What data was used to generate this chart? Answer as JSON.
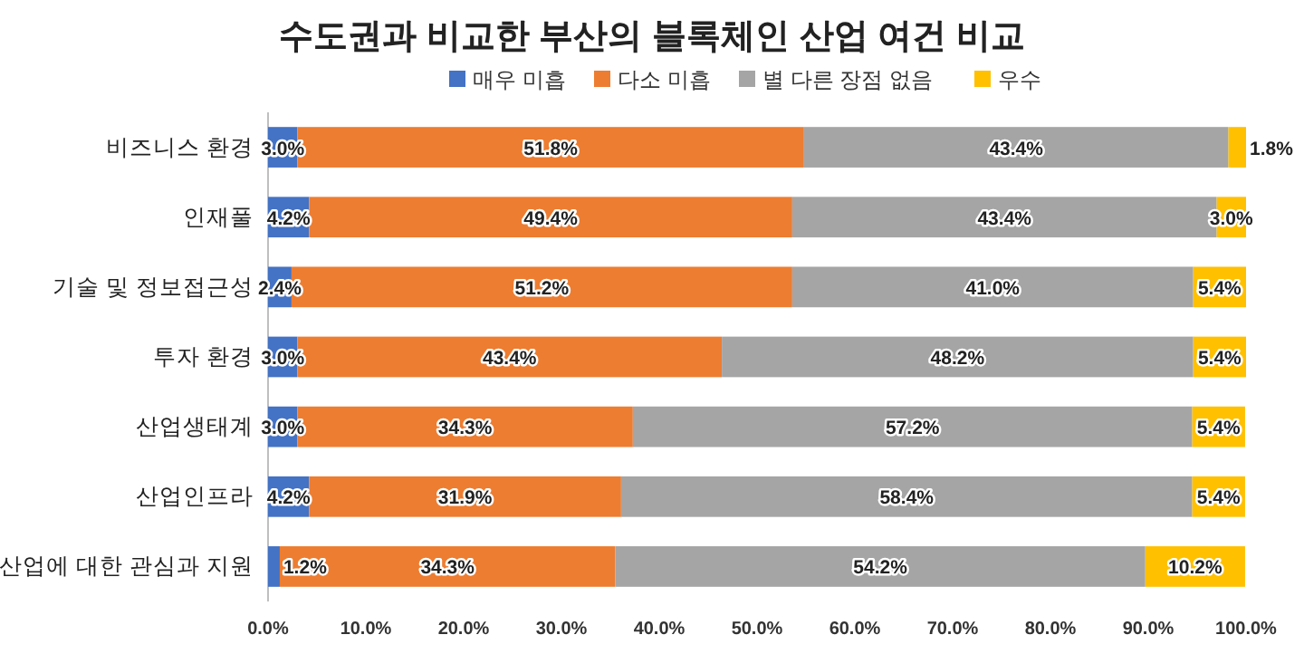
{
  "chart_data": {
    "type": "bar",
    "orientation": "horizontal",
    "stacked": true,
    "title": "수도권과 비교한 부산의 블록체인 산업 여건 비교",
    "categories": [
      "비즈니스 환경",
      "인재풀",
      "기술 및 정보접근성",
      "투자 환경",
      "산업생태계",
      "산업인프라",
      "산업에 대한 관심과 지원"
    ],
    "series": [
      {
        "name": "매우 미흡",
        "color": "#4472c4",
        "values": [
          3.0,
          4.2,
          2.4,
          3.0,
          3.0,
          4.2,
          1.2
        ],
        "value_labels": [
          "3.0%",
          "4.2%",
          "2.4%",
          "3.0%",
          "3.0%",
          "4.2%",
          "1.2%"
        ]
      },
      {
        "name": "다소 미흡",
        "color": "#ed7d31",
        "values": [
          51.8,
          49.4,
          51.2,
          43.4,
          34.3,
          31.9,
          34.3
        ],
        "value_labels": [
          "51.8%",
          "49.4%",
          "51.2%",
          "43.4%",
          "34.3%",
          "31.9%",
          "34.3%"
        ]
      },
      {
        "name": "별 다른 장점 없음",
        "color": "#a5a5a5",
        "values": [
          43.4,
          43.4,
          41.0,
          48.2,
          57.2,
          58.4,
          54.2
        ],
        "value_labels": [
          "43.4%",
          "43.4%",
          "41.0%",
          "48.2%",
          "57.2%",
          "58.4%",
          "54.2%"
        ]
      },
      {
        "name": "우수",
        "color": "#ffc000",
        "values": [
          1.8,
          3.0,
          5.4,
          5.4,
          5.4,
          5.4,
          10.2
        ],
        "value_labels": [
          "1.8%",
          "3.0%",
          "5.4%",
          "5.4%",
          "5.4%",
          "5.4%",
          "10.2%"
        ]
      }
    ],
    "xlim": [
      0,
      100
    ],
    "xticks": [
      {
        "value": 0,
        "label": "0.0%"
      },
      {
        "value": 10,
        "label": "10.0%"
      },
      {
        "value": 20,
        "label": "20.0%"
      },
      {
        "value": 30,
        "label": "30.0%"
      },
      {
        "value": 40,
        "label": "40.0%"
      },
      {
        "value": 50,
        "label": "50.0%"
      },
      {
        "value": 60,
        "label": "60.0%"
      },
      {
        "value": 70,
        "label": "70.0%"
      },
      {
        "value": 80,
        "label": "80.0%"
      },
      {
        "value": 90,
        "label": "90.0%"
      },
      {
        "value": 100,
        "label": "100.0%"
      }
    ],
    "legend": "top",
    "grid": false
  }
}
